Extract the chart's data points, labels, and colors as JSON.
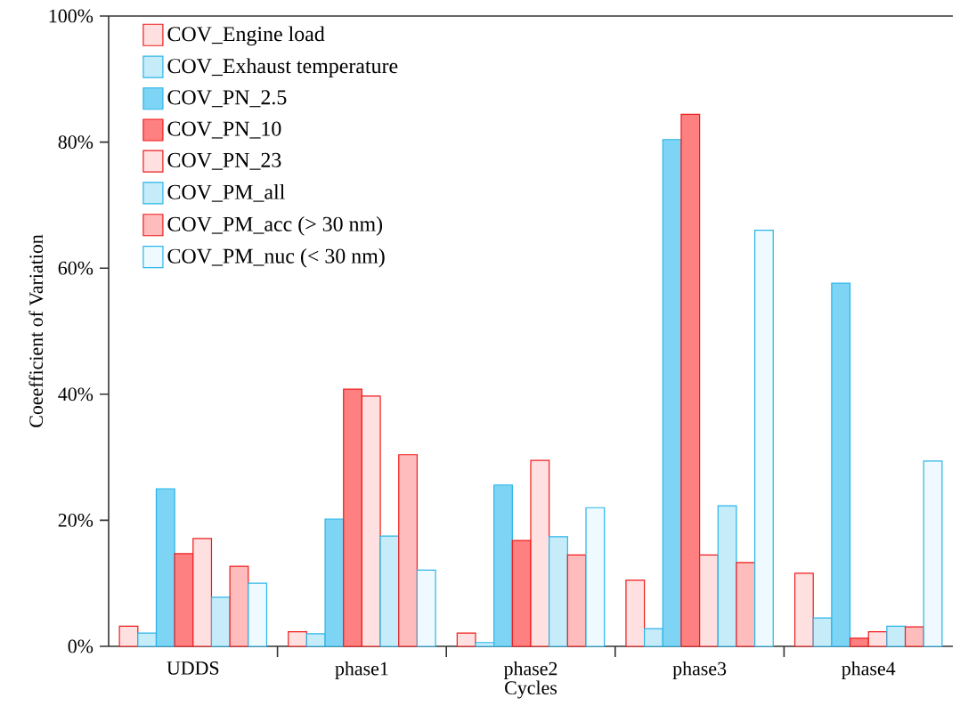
{
  "chart_data": {
    "type": "bar",
    "xlabel": "Cycles",
    "ylabel": "Coeefficient of Variation",
    "categories": [
      "UDDS",
      "phase1",
      "phase2",
      "phase3",
      "phase4"
    ],
    "series": [
      {
        "name": "COV_Engine load",
        "color": "#ffe0e0",
        "values": [
          3.2,
          2.3,
          2.1,
          10.5,
          11.6
        ]
      },
      {
        "name": "COV_Exhaust temperature",
        "color": "#c6ecfa",
        "values": [
          2.1,
          2.0,
          0.6,
          2.8,
          4.5
        ]
      },
      {
        "name": "COV_PN_2.5",
        "color": "#7dd4f5",
        "values": [
          25.0,
          20.2,
          25.6,
          80.4,
          57.6
        ]
      },
      {
        "name": "COV_PN_10",
        "color": "#ff8080",
        "values": [
          14.7,
          40.8,
          16.8,
          84.4,
          1.3
        ]
      },
      {
        "name": "COV_PN_23",
        "color": "#ffe0e0",
        "values": [
          17.1,
          39.7,
          29.5,
          14.5,
          2.3
        ]
      },
      {
        "name": "COV_PM_all",
        "color": "#c6ecfa",
        "values": [
          7.8,
          17.5,
          17.4,
          22.3,
          3.2
        ]
      },
      {
        "name": "COV_PM_acc (> 30 nm)",
        "color": "#ffbcbc",
        "values": [
          12.7,
          30.4,
          14.5,
          13.3,
          3.1
        ]
      },
      {
        "name": "COV_PM_nuc (< 30 nm)",
        "color": "#eefaff",
        "values": [
          10.0,
          12.1,
          22.0,
          66.0,
          29.4
        ]
      }
    ],
    "ylim": [
      0,
      100
    ],
    "yticks": [
      {
        "value": 0,
        "label": "0%"
      },
      {
        "value": 20,
        "label": "20%"
      },
      {
        "value": 40,
        "label": "40%"
      },
      {
        "value": 60,
        "label": "60%"
      },
      {
        "value": 80,
        "label": "80%"
      },
      {
        "value": 100,
        "label": "100%"
      }
    ],
    "legend": "top left",
    "grid": false
  }
}
